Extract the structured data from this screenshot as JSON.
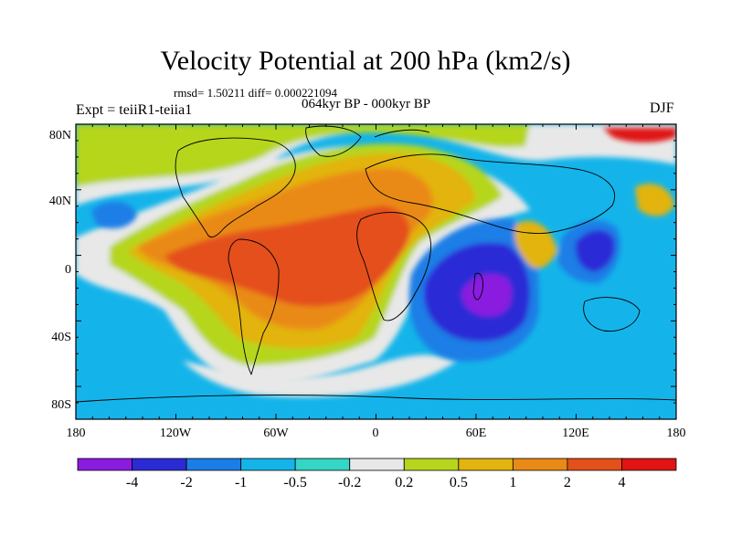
{
  "figure": {
    "title": "Velocity Potential at 200 hPa (km2/s)",
    "stats": "rmsd= 1.50211 diff= 0.000221094",
    "period": "064kyr BP - 000kyr BP",
    "experiment": "Expt = teiiR1-teiia1",
    "season": "DJF"
  },
  "map": {
    "lon_labels": [
      "180",
      "120W",
      "60W",
      "0",
      "60E",
      "120E",
      "180"
    ],
    "lat_labels": [
      "80N",
      "40N",
      "0",
      "40S",
      "80S"
    ]
  },
  "colorbar": {
    "colors": [
      "#8a1be0",
      "#2b2bd6",
      "#1a7ee6",
      "#14b4ea",
      "#34d6c6",
      "#e8e8e8",
      "#b6d61e",
      "#e2b40e",
      "#ea8a16",
      "#e4501a",
      "#e01414"
    ],
    "labels": [
      "-4",
      "-2",
      "-1",
      "-0.5",
      "-0.2",
      "0.2",
      "0.5",
      "1",
      "2",
      "4"
    ]
  }
}
